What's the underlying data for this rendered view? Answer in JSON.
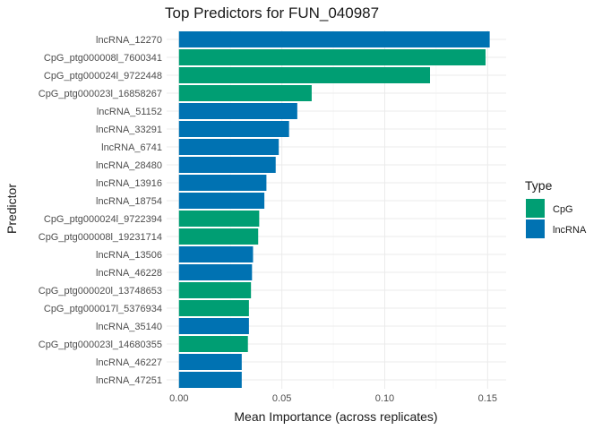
{
  "chart_data": {
    "type": "bar",
    "orientation": "horizontal",
    "title": "Top Predictors for FUN_040987",
    "xlabel": "Mean Importance (across replicates)",
    "ylabel": "Predictor",
    "xlim": [
      -0.006,
      0.159
    ],
    "xticks": [
      0,
      0.05,
      0.1,
      0.15
    ],
    "xtick_labels": [
      "0.00",
      "0.05",
      "0.10",
      "0.15"
    ],
    "grid": true,
    "legend": {
      "title": "Type",
      "position": "right",
      "entries": [
        {
          "label": "CpG",
          "color": "#009E73"
        },
        {
          "label": "lncRNA",
          "color": "#0072B2"
        }
      ]
    },
    "categories": [
      "lncRNA_12270",
      "CpG_ptg000008l_7600341",
      "CpG_ptg000024l_9722448",
      "CpG_ptg000023l_16858267",
      "lncRNA_51152",
      "lncRNA_33291",
      "lncRNA_6741",
      "lncRNA_28480",
      "lncRNA_13916",
      "lncRNA_18754",
      "CpG_ptg000024l_9722394",
      "CpG_ptg000008l_19231714",
      "lncRNA_13506",
      "lncRNA_46228",
      "CpG_ptg000020l_13748653",
      "CpG_ptg000017l_5376934",
      "lncRNA_35140",
      "CpG_ptg000023l_14680355",
      "lncRNA_46227",
      "lncRNA_47251"
    ],
    "values": [
      0.151,
      0.149,
      0.122,
      0.0645,
      0.0575,
      0.0535,
      0.0485,
      0.047,
      0.0425,
      0.0415,
      0.039,
      0.0385,
      0.036,
      0.0355,
      0.035,
      0.034,
      0.034,
      0.0335,
      0.0305,
      0.0305
    ],
    "types": [
      "lncRNA",
      "CpG",
      "CpG",
      "CpG",
      "lncRNA",
      "lncRNA",
      "lncRNA",
      "lncRNA",
      "lncRNA",
      "lncRNA",
      "CpG",
      "CpG",
      "lncRNA",
      "lncRNA",
      "CpG",
      "CpG",
      "lncRNA",
      "CpG",
      "lncRNA",
      "lncRNA"
    ]
  }
}
